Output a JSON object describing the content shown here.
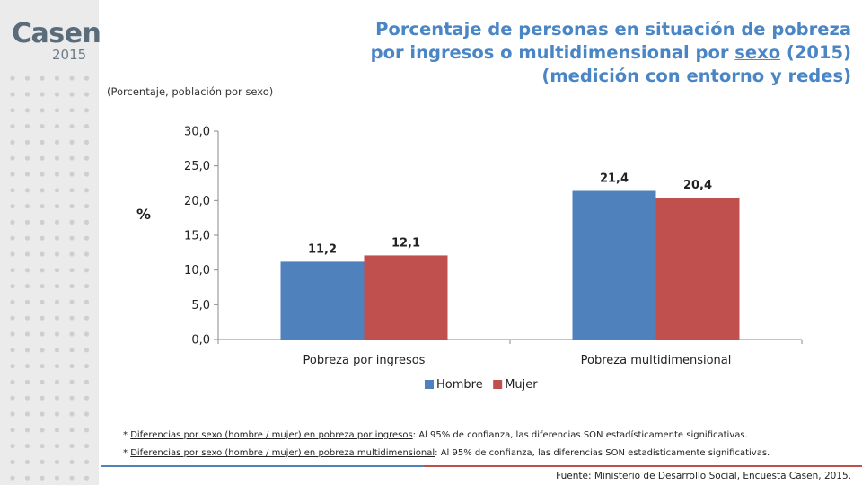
{
  "logo": {
    "word": "Casen",
    "year": "2015"
  },
  "title": {
    "line1": "Porcentaje de personas en situación de pobreza",
    "line2_pre": "por ingresos o multidimensional por ",
    "line2_underlined": "sexo",
    "line2_post": " (2015)",
    "line3": "(medición con entorno y redes)"
  },
  "subtitle": "(Porcentaje, población por sexo)",
  "chart_data": {
    "type": "bar",
    "categories": [
      "Pobreza por ingresos",
      "Pobreza multidimensional"
    ],
    "series": [
      {
        "name": "Hombre",
        "values": [
          11.2,
          21.4
        ],
        "labels": [
          "11,2",
          "21,4"
        ],
        "color": "#4f81bd"
      },
      {
        "name": "Mujer",
        "values": [
          12.1,
          20.4
        ],
        "labels": [
          "12,1",
          "20,4"
        ],
        "color": "#c0504d"
      }
    ],
    "ylabel": "%",
    "ylim": [
      0,
      30
    ],
    "yticks": [
      0,
      5,
      10,
      15,
      20,
      25,
      30
    ],
    "ytick_labels": [
      "0,0",
      "5,0",
      "10,0",
      "15,0",
      "20,0",
      "25,0",
      "30,0"
    ],
    "grid": false,
    "legend": "bottom"
  },
  "notes": [
    {
      "prefix": "* ",
      "underlined": "Diferencias por sexo (hombre / mujer) en pobreza por ingresos",
      "rest": ": Al 95% de confianza, las diferencias SON estadísticamente significativas."
    },
    {
      "prefix": "* ",
      "underlined": "Diferencias por sexo (hombre / mujer) en pobreza multidimensional",
      "rest": ": Al 95% de confianza, las diferencias SON estadísticamente significativas."
    }
  ],
  "source": "Fuente: Ministerio de Desarrollo Social, Encuesta Casen, 2015."
}
